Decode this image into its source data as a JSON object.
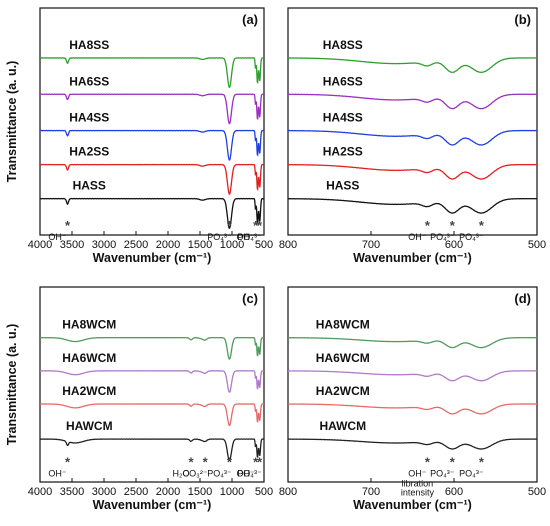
{
  "chart_data": [
    {
      "type": "line",
      "panel_label": "(a)",
      "xlabel": "Wavenumber (cm⁻¹)",
      "ylabel": "Transmittance (a. u.)",
      "xlim": [
        4000,
        500
      ],
      "x_reversed": true,
      "xticks": [
        4000,
        3500,
        3000,
        2500,
        2000,
        1500,
        1000,
        500
      ],
      "series": [
        {
          "name": "HA8SS",
          "color": "#2ca02c"
        },
        {
          "name": "HA6SS",
          "color": "#9b30c0"
        },
        {
          "name": "HA4SS",
          "color": "#1f3fe0"
        },
        {
          "name": "HA2SS",
          "color": "#e02020"
        },
        {
          "name": "HASS",
          "color": "#111111"
        }
      ],
      "annotations": [
        {
          "text": "OH⁻",
          "x": 3570,
          "star": true
        },
        {
          "text": "PO₄³⁻",
          "x": 1040,
          "star": true
        },
        {
          "text": "OH⁻",
          "x": 630,
          "star": true
        },
        {
          "text": "PO₄³⁻",
          "x": 570,
          "star": true
        }
      ]
    },
    {
      "type": "line",
      "panel_label": "(b)",
      "xlabel": "Wavenumber (cm⁻¹)",
      "ylabel": "",
      "xlim": [
        800,
        500
      ],
      "x_reversed": true,
      "xticks": [
        800,
        700,
        600,
        500
      ],
      "series": [
        {
          "name": "HA8SS",
          "color": "#2ca02c"
        },
        {
          "name": "HA6SS",
          "color": "#9b30c0"
        },
        {
          "name": "HA4SS",
          "color": "#1f3fe0"
        },
        {
          "name": "HA2SS",
          "color": "#e02020"
        },
        {
          "name": "HASS",
          "color": "#111111"
        }
      ],
      "annotations": [
        {
          "text": "OH⁻",
          "x": 632,
          "star": true
        },
        {
          "text": "PO₄³⁻",
          "x": 602,
          "star": true
        },
        {
          "text": "PO₄³⁻",
          "x": 567,
          "star": true
        }
      ]
    },
    {
      "type": "line",
      "panel_label": "(c)",
      "xlabel": "Wavenumber (cm⁻¹)",
      "ylabel": "Transmittance (a. u.)",
      "xlim": [
        4000,
        500
      ],
      "x_reversed": true,
      "xticks": [
        4000,
        3500,
        3000,
        2500,
        2000,
        1500,
        1000,
        500
      ],
      "series": [
        {
          "name": "HA8WCM",
          "color": "#4f9a5f"
        },
        {
          "name": "HA6WCM",
          "color": "#b07ac8"
        },
        {
          "name": "HA2WCM",
          "color": "#e66a6a"
        },
        {
          "name": "HAWCM",
          "color": "#222222"
        }
      ],
      "annotations": [
        {
          "text": "OH⁻",
          "x": 3570,
          "star": true
        },
        {
          "text": "H₂O",
          "x": 1640,
          "star": true
        },
        {
          "text": "CO₃²⁻",
          "x": 1420,
          "star": true
        },
        {
          "text": "PO₄³⁻",
          "x": 1040,
          "star": true
        },
        {
          "text": "OH⁻",
          "x": 630,
          "star": true
        },
        {
          "text": "PO₄³⁻",
          "x": 570,
          "star": true
        }
      ]
    },
    {
      "type": "line",
      "panel_label": "(d)",
      "xlabel": "Wavenumber (cm⁻¹)",
      "ylabel": "",
      "xlim": [
        800,
        500
      ],
      "x_reversed": true,
      "xticks": [
        800,
        700,
        600,
        500
      ],
      "series": [
        {
          "name": "HA8WCM",
          "color": "#4f9a5f"
        },
        {
          "name": "HA6WCM",
          "color": "#b07ac8"
        },
        {
          "name": "HA2WCM",
          "color": "#e66a6a"
        },
        {
          "name": "HAWCM",
          "color": "#222222"
        }
      ],
      "annotations": [
        {
          "text": "OH⁻",
          "sub": "libration intensity",
          "x": 632,
          "star": true
        },
        {
          "text": "PO₄³⁻",
          "x": 602,
          "star": true
        },
        {
          "text": "PO₄³⁻",
          "x": 567,
          "star": true
        }
      ]
    }
  ]
}
